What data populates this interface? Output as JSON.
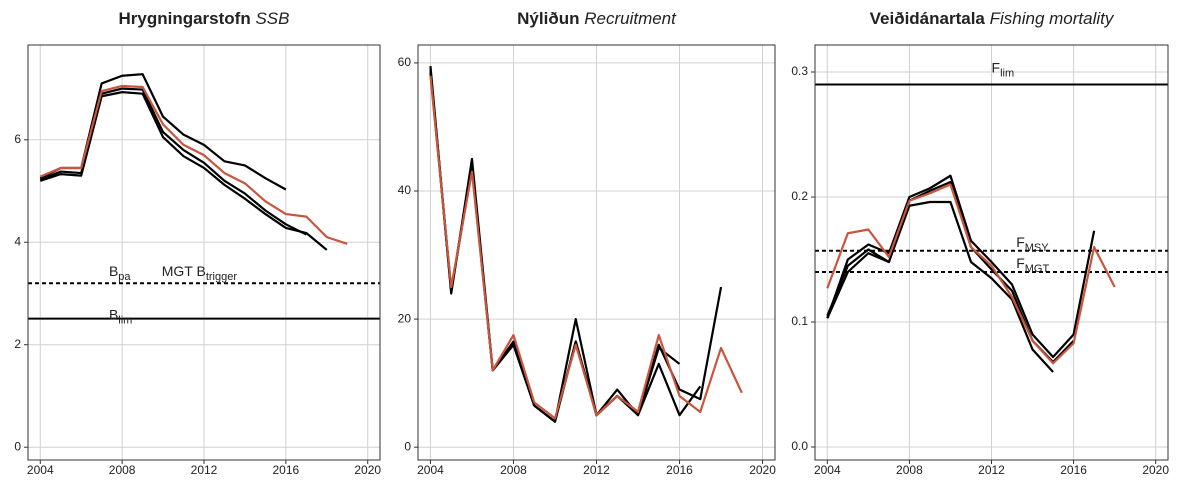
{
  "chart_data": [
    {
      "type": "line",
      "title": "Hrygningarstofn",
      "subtitle": "SSB",
      "x": [
        2004,
        2005,
        2006,
        2007,
        2008,
        2009,
        2010,
        2011,
        2012,
        2013,
        2014,
        2015,
        2016,
        2017,
        2018,
        2019
      ],
      "xlim": [
        2003.4,
        2020.6
      ],
      "xticks": [
        2004,
        2008,
        2012,
        2016,
        2020
      ],
      "ylim": [
        -0.25,
        7.85
      ],
      "yticks": [
        0,
        2,
        4,
        6
      ],
      "grid": true,
      "series": [
        {
          "color": "#000000",
          "values": [
            5.25,
            5.45,
            5.45,
            7.1,
            7.25,
            7.28,
            6.45,
            6.1,
            5.9,
            5.58,
            5.5,
            5.25,
            5.03,
            null,
            null,
            null
          ]
        },
        {
          "color": "#000000",
          "values": [
            5.22,
            5.38,
            5.35,
            6.9,
            7.0,
            6.98,
            6.15,
            5.8,
            5.55,
            5.2,
            4.95,
            4.62,
            4.35,
            4.15,
            null,
            null
          ]
        },
        {
          "color": "#000000",
          "values": [
            5.2,
            5.33,
            5.3,
            6.85,
            6.93,
            6.9,
            6.05,
            5.68,
            5.45,
            5.12,
            4.85,
            4.55,
            4.28,
            4.18,
            3.85,
            null
          ]
        },
        {
          "color": "#c8553d",
          "values": [
            5.28,
            5.45,
            5.45,
            6.95,
            7.05,
            7.03,
            6.3,
            5.9,
            5.7,
            5.35,
            5.15,
            4.8,
            4.55,
            4.5,
            4.1,
            3.97
          ]
        }
      ],
      "reference_lines": [
        {
          "value": 3.2,
          "dashed": true,
          "labels": [
            {
              "text": "B",
              "sub": "pa"
            },
            {
              "text": "MGT B",
              "sub": "trigger"
            }
          ]
        },
        {
          "value": 2.51,
          "dashed": false,
          "labels": [
            {
              "text": "B",
              "sub": "lim"
            }
          ]
        }
      ]
    },
    {
      "type": "line",
      "title": "Nýliðun",
      "subtitle": "Recruitment",
      "x": [
        2004,
        2005,
        2006,
        2007,
        2008,
        2009,
        2010,
        2011,
        2012,
        2013,
        2014,
        2015,
        2016,
        2017,
        2018,
        2019
      ],
      "xlim": [
        2003.4,
        2020.6
      ],
      "xticks": [
        2004,
        2008,
        2012,
        2016,
        2020
      ],
      "ylim": [
        -2,
        62.8
      ],
      "yticks": [
        0,
        20,
        40,
        60
      ],
      "grid": true,
      "series": [
        {
          "color": "#000000",
          "values": [
            59.5,
            24,
            45,
            12,
            16,
            6.5,
            4,
            20,
            5,
            9,
            5,
            15.5,
            13,
            null,
            null,
            null
          ]
        },
        {
          "color": "#000000",
          "values": [
            59,
            24.5,
            44,
            12,
            16.5,
            6.5,
            4,
            16.5,
            5,
            8,
            5,
            13,
            5,
            9.5,
            null,
            null
          ]
        },
        {
          "color": "#000000",
          "values": [
            58.5,
            24.5,
            43.5,
            12,
            16,
            6.5,
            4,
            16.5,
            5,
            8,
            5.5,
            16,
            9,
            7.5,
            25,
            null
          ]
        },
        {
          "color": "#c8553d",
          "values": [
            58,
            25,
            43,
            12,
            17.5,
            7,
            4.5,
            16,
            5,
            8,
            5.5,
            17.5,
            8,
            5.5,
            15.5,
            8.5
          ]
        }
      ]
    },
    {
      "type": "line",
      "title": "Veiðidánartala",
      "subtitle": "Fishing mortality",
      "x": [
        2004,
        2005,
        2006,
        2007,
        2008,
        2009,
        2010,
        2011,
        2012,
        2013,
        2014,
        2015,
        2016,
        2017,
        2018,
        2019
      ],
      "xlim": [
        2003.4,
        2020.6
      ],
      "xticks": [
        2004,
        2008,
        2012,
        2016,
        2020
      ],
      "ylim": [
        -0.0104,
        0.3216
      ],
      "yticks": [
        {
          "value": 0,
          "label": "0.0"
        },
        0.1,
        0.2,
        0.3
      ],
      "grid": true,
      "series": [
        {
          "color": "#000000",
          "values": [
            0.103,
            0.15,
            0.162,
            0.155,
            0.2,
            0.207,
            0.217,
            0.165,
            0.148,
            0.13,
            0.09,
            0.072,
            0.09,
            0.173,
            null,
            null
          ]
        },
        {
          "color": "#000000",
          "values": [
            0.105,
            0.145,
            0.158,
            0.148,
            0.193,
            0.196,
            0.196,
            0.148,
            0.135,
            0.118,
            0.078,
            0.06,
            null,
            null,
            null,
            null
          ]
        },
        {
          "color": "#000000",
          "values": [
            0.103,
            0.14,
            0.155,
            0.148,
            0.197,
            0.205,
            0.212,
            0.16,
            0.142,
            0.125,
            0.085,
            0.068,
            0.085,
            null,
            null,
            null
          ]
        },
        {
          "color": "#c8553d",
          "values": [
            0.127,
            0.171,
            0.174,
            0.152,
            0.197,
            0.203,
            0.21,
            0.16,
            0.145,
            0.12,
            0.085,
            0.067,
            0.083,
            0.16,
            0.128,
            null
          ]
        }
      ],
      "reference_lines": [
        {
          "value": 0.29,
          "dashed": false,
          "labels": [
            {
              "text": "F",
              "sub": "lim"
            }
          ]
        },
        {
          "value": 0.157,
          "dashed": true,
          "labels": [
            {
              "text": "F",
              "sub": "MSY"
            }
          ]
        },
        {
          "value": 0.14,
          "dashed": true,
          "labels": [
            {
              "text": "F",
              "sub": "MGT"
            }
          ]
        }
      ]
    }
  ]
}
